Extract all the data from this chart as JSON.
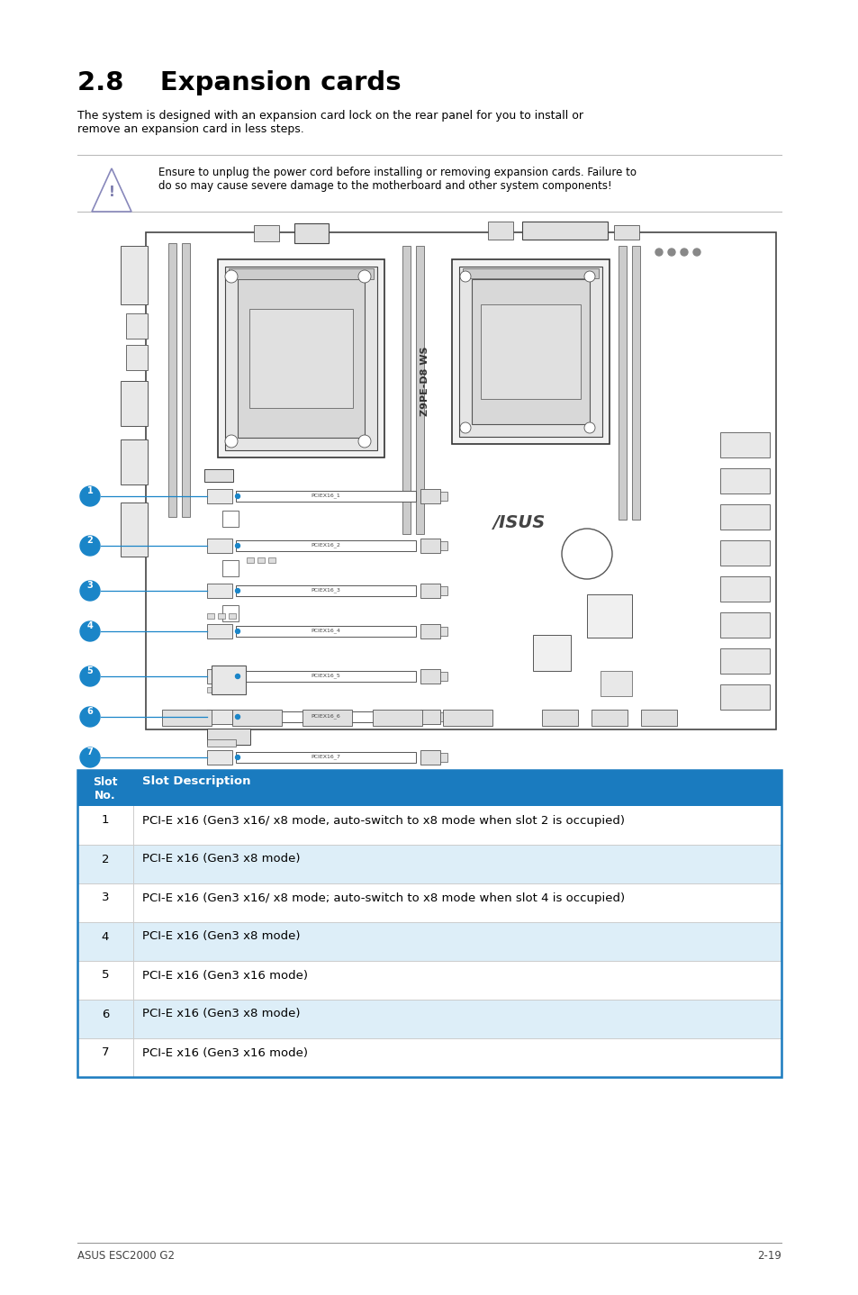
{
  "title": "2.8    Expansion cards",
  "body_text": "The system is designed with an expansion card lock on the rear panel for you to install or\nremove an expansion card in less steps.",
  "warning_text": "Ensure to unplug the power cord before installing or removing expansion cards. Failure to\ndo so may cause severe damage to the motherboard and other system components!",
  "table_header": [
    "Slot\nNo.",
    "Slot Description"
  ],
  "table_header_bg": "#1a7bbf",
  "table_header_color": "#ffffff",
  "table_rows": [
    [
      "1",
      "PCI-E x16 (Gen3 x16/ x8 mode, auto-switch to x8 mode when slot 2 is occupied)"
    ],
    [
      "2",
      "PCI-E x16 (Gen3 x8 mode)"
    ],
    [
      "3",
      "PCI-E x16 (Gen3 x16/ x8 mode; auto-switch to x8 mode when slot 4 is occupied)"
    ],
    [
      "4",
      "PCI-E x16 (Gen3 x8 mode)"
    ],
    [
      "5",
      "PCI-E x16 (Gen3 x16 mode)"
    ],
    [
      "6",
      "PCI-E x16 (Gen3 x8 mode)"
    ],
    [
      "7",
      "PCI-E x16 (Gen3 x16 mode)"
    ]
  ],
  "table_row_even_bg": "#ffffff",
  "table_row_odd_bg": "#ddeef8",
  "table_border_color": "#1a7bbf",
  "footer_left": "ASUS ESC2000 G2",
  "footer_right": "2-19",
  "bg_color": "#ffffff",
  "text_color": "#000000",
  "slot_labels": [
    "PCIEX16_1",
    "PCIEX16_2",
    "PCIEX16_3",
    "PCIEX16_4",
    "PCIEX16_5",
    "PCIEX16_6",
    "PCIEX16_7"
  ]
}
